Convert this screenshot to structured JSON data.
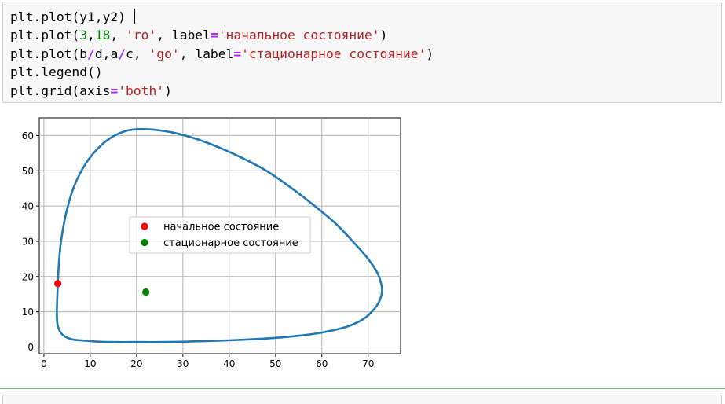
{
  "code_cell": {
    "lines": [
      [
        {
          "t": "plt.plot(y1,y2) ",
          "c": ""
        }
      ],
      [
        {
          "t": "plt.plot(",
          "c": ""
        },
        {
          "t": "3",
          "c": "num"
        },
        {
          "t": ",",
          "c": ""
        },
        {
          "t": "18",
          "c": "num"
        },
        {
          "t": ", ",
          "c": ""
        },
        {
          "t": "'ro'",
          "c": "str"
        },
        {
          "t": ", label",
          "c": ""
        },
        {
          "t": "=",
          "c": "op"
        },
        {
          "t": "'начальное состояние'",
          "c": "str"
        },
        {
          "t": ")",
          "c": ""
        }
      ],
      [
        {
          "t": "plt.plot(b",
          "c": ""
        },
        {
          "t": "/",
          "c": "op"
        },
        {
          "t": "d,a",
          "c": ""
        },
        {
          "t": "/",
          "c": "op"
        },
        {
          "t": "c, ",
          "c": ""
        },
        {
          "t": "'go'",
          "c": "str"
        },
        {
          "t": ", label",
          "c": ""
        },
        {
          "t": "=",
          "c": "op"
        },
        {
          "t": "'стационарное состояние'",
          "c": "str"
        },
        {
          "t": ")",
          "c": ""
        }
      ],
      [
        {
          "t": "plt.legend()",
          "c": ""
        }
      ],
      [
        {
          "t": "plt.grid(axis",
          "c": ""
        },
        {
          "t": "=",
          "c": "op"
        },
        {
          "t": "'both'",
          "c": "str"
        },
        {
          "t": ")",
          "c": ""
        }
      ]
    ]
  },
  "colors": {
    "curve": "#1f77b4",
    "initial_point": "#ff0000",
    "stationary_point": "#008000",
    "grid": "#b0b0b0"
  },
  "chart_data": {
    "type": "line",
    "title": "",
    "xlabel": "",
    "ylabel": "",
    "xlim": [
      -1,
      77
    ],
    "ylim": [
      -1.9,
      65
    ],
    "x_ticks": [
      0,
      10,
      20,
      30,
      40,
      50,
      60,
      70
    ],
    "y_ticks": [
      0,
      10,
      20,
      30,
      40,
      50,
      60
    ],
    "grid": true,
    "legend_placement": "center",
    "series": [
      {
        "type": "line",
        "x": [
          3,
          2.8,
          3.0,
          4,
          6,
          9,
          12,
          16,
          20,
          25,
          30,
          35,
          40,
          45,
          50,
          55,
          60,
          65,
          68,
          70,
          71.8,
          72.6,
          73,
          72.8,
          72,
          70,
          67,
          63,
          58,
          53,
          48,
          43,
          38,
          33,
          28,
          24,
          21,
          18,
          15,
          12,
          9,
          6.5,
          4.8,
          3.7,
          3.2,
          3
        ],
        "y": [
          18,
          10,
          6,
          3.5,
          2.2,
          1.8,
          1.5,
          1.4,
          1.4,
          1.4,
          1.5,
          1.7,
          1.9,
          2.2,
          2.6,
          3.2,
          4.1,
          5.6,
          7.2,
          9,
          11.6,
          13.6,
          15.8,
          18,
          21,
          25,
          29.5,
          35,
          40.5,
          45.5,
          50,
          53.5,
          56.5,
          59,
          60.8,
          61.6,
          61.8,
          61.4,
          59.8,
          56.8,
          52,
          45.5,
          38,
          30,
          23,
          18
        ]
      },
      {
        "name": "начальное состояние",
        "type": "scatter",
        "x": [
          3
        ],
        "y": [
          18
        ]
      },
      {
        "name": "стационарное состояние",
        "type": "scatter",
        "x": [
          22
        ],
        "y": [
          15.6
        ]
      }
    ]
  }
}
